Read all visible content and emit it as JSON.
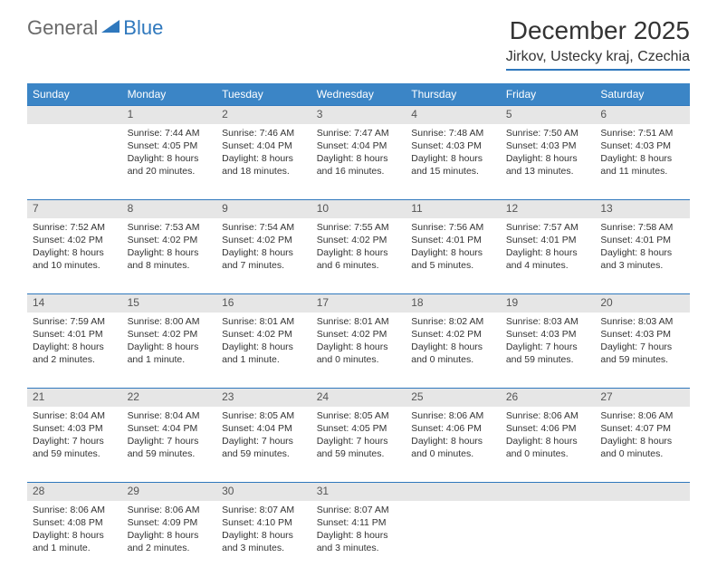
{
  "logo": {
    "text1": "General",
    "text2": "Blue"
  },
  "title": "December 2025",
  "location": "Jirkov, Ustecky kraj, Czechia",
  "colors": {
    "header_bg": "#3b85c6",
    "header_text": "#ffffff",
    "daynum_bg": "#e6e6e6",
    "rule": "#2f78bd",
    "logo_gray": "#6a6a6a",
    "logo_blue": "#2f78bd"
  },
  "weekdays": [
    "Sunday",
    "Monday",
    "Tuesday",
    "Wednesday",
    "Thursday",
    "Friday",
    "Saturday"
  ],
  "weeks": [
    [
      {
        "n": "",
        "sr": "",
        "ss": "",
        "dl": ""
      },
      {
        "n": "1",
        "sr": "7:44 AM",
        "ss": "4:05 PM",
        "dl": "8 hours and 20 minutes."
      },
      {
        "n": "2",
        "sr": "7:46 AM",
        "ss": "4:04 PM",
        "dl": "8 hours and 18 minutes."
      },
      {
        "n": "3",
        "sr": "7:47 AM",
        "ss": "4:04 PM",
        "dl": "8 hours and 16 minutes."
      },
      {
        "n": "4",
        "sr": "7:48 AM",
        "ss": "4:03 PM",
        "dl": "8 hours and 15 minutes."
      },
      {
        "n": "5",
        "sr": "7:50 AM",
        "ss": "4:03 PM",
        "dl": "8 hours and 13 minutes."
      },
      {
        "n": "6",
        "sr": "7:51 AM",
        "ss": "4:03 PM",
        "dl": "8 hours and 11 minutes."
      }
    ],
    [
      {
        "n": "7",
        "sr": "7:52 AM",
        "ss": "4:02 PM",
        "dl": "8 hours and 10 minutes."
      },
      {
        "n": "8",
        "sr": "7:53 AM",
        "ss": "4:02 PM",
        "dl": "8 hours and 8 minutes."
      },
      {
        "n": "9",
        "sr": "7:54 AM",
        "ss": "4:02 PM",
        "dl": "8 hours and 7 minutes."
      },
      {
        "n": "10",
        "sr": "7:55 AM",
        "ss": "4:02 PM",
        "dl": "8 hours and 6 minutes."
      },
      {
        "n": "11",
        "sr": "7:56 AM",
        "ss": "4:01 PM",
        "dl": "8 hours and 5 minutes."
      },
      {
        "n": "12",
        "sr": "7:57 AM",
        "ss": "4:01 PM",
        "dl": "8 hours and 4 minutes."
      },
      {
        "n": "13",
        "sr": "7:58 AM",
        "ss": "4:01 PM",
        "dl": "8 hours and 3 minutes."
      }
    ],
    [
      {
        "n": "14",
        "sr": "7:59 AM",
        "ss": "4:01 PM",
        "dl": "8 hours and 2 minutes."
      },
      {
        "n": "15",
        "sr": "8:00 AM",
        "ss": "4:02 PM",
        "dl": "8 hours and 1 minute."
      },
      {
        "n": "16",
        "sr": "8:01 AM",
        "ss": "4:02 PM",
        "dl": "8 hours and 1 minute."
      },
      {
        "n": "17",
        "sr": "8:01 AM",
        "ss": "4:02 PM",
        "dl": "8 hours and 0 minutes."
      },
      {
        "n": "18",
        "sr": "8:02 AM",
        "ss": "4:02 PM",
        "dl": "8 hours and 0 minutes."
      },
      {
        "n": "19",
        "sr": "8:03 AM",
        "ss": "4:03 PM",
        "dl": "7 hours and 59 minutes."
      },
      {
        "n": "20",
        "sr": "8:03 AM",
        "ss": "4:03 PM",
        "dl": "7 hours and 59 minutes."
      }
    ],
    [
      {
        "n": "21",
        "sr": "8:04 AM",
        "ss": "4:03 PM",
        "dl": "7 hours and 59 minutes."
      },
      {
        "n": "22",
        "sr": "8:04 AM",
        "ss": "4:04 PM",
        "dl": "7 hours and 59 minutes."
      },
      {
        "n": "23",
        "sr": "8:05 AM",
        "ss": "4:04 PM",
        "dl": "7 hours and 59 minutes."
      },
      {
        "n": "24",
        "sr": "8:05 AM",
        "ss": "4:05 PM",
        "dl": "7 hours and 59 minutes."
      },
      {
        "n": "25",
        "sr": "8:06 AM",
        "ss": "4:06 PM",
        "dl": "8 hours and 0 minutes."
      },
      {
        "n": "26",
        "sr": "8:06 AM",
        "ss": "4:06 PM",
        "dl": "8 hours and 0 minutes."
      },
      {
        "n": "27",
        "sr": "8:06 AM",
        "ss": "4:07 PM",
        "dl": "8 hours and 0 minutes."
      }
    ],
    [
      {
        "n": "28",
        "sr": "8:06 AM",
        "ss": "4:08 PM",
        "dl": "8 hours and 1 minute."
      },
      {
        "n": "29",
        "sr": "8:06 AM",
        "ss": "4:09 PM",
        "dl": "8 hours and 2 minutes."
      },
      {
        "n": "30",
        "sr": "8:07 AM",
        "ss": "4:10 PM",
        "dl": "8 hours and 3 minutes."
      },
      {
        "n": "31",
        "sr": "8:07 AM",
        "ss": "4:11 PM",
        "dl": "8 hours and 3 minutes."
      },
      {
        "n": "",
        "sr": "",
        "ss": "",
        "dl": ""
      },
      {
        "n": "",
        "sr": "",
        "ss": "",
        "dl": ""
      },
      {
        "n": "",
        "sr": "",
        "ss": "",
        "dl": ""
      }
    ]
  ],
  "labels": {
    "sunrise": "Sunrise: ",
    "sunset": "Sunset: ",
    "daylight": "Daylight: "
  }
}
